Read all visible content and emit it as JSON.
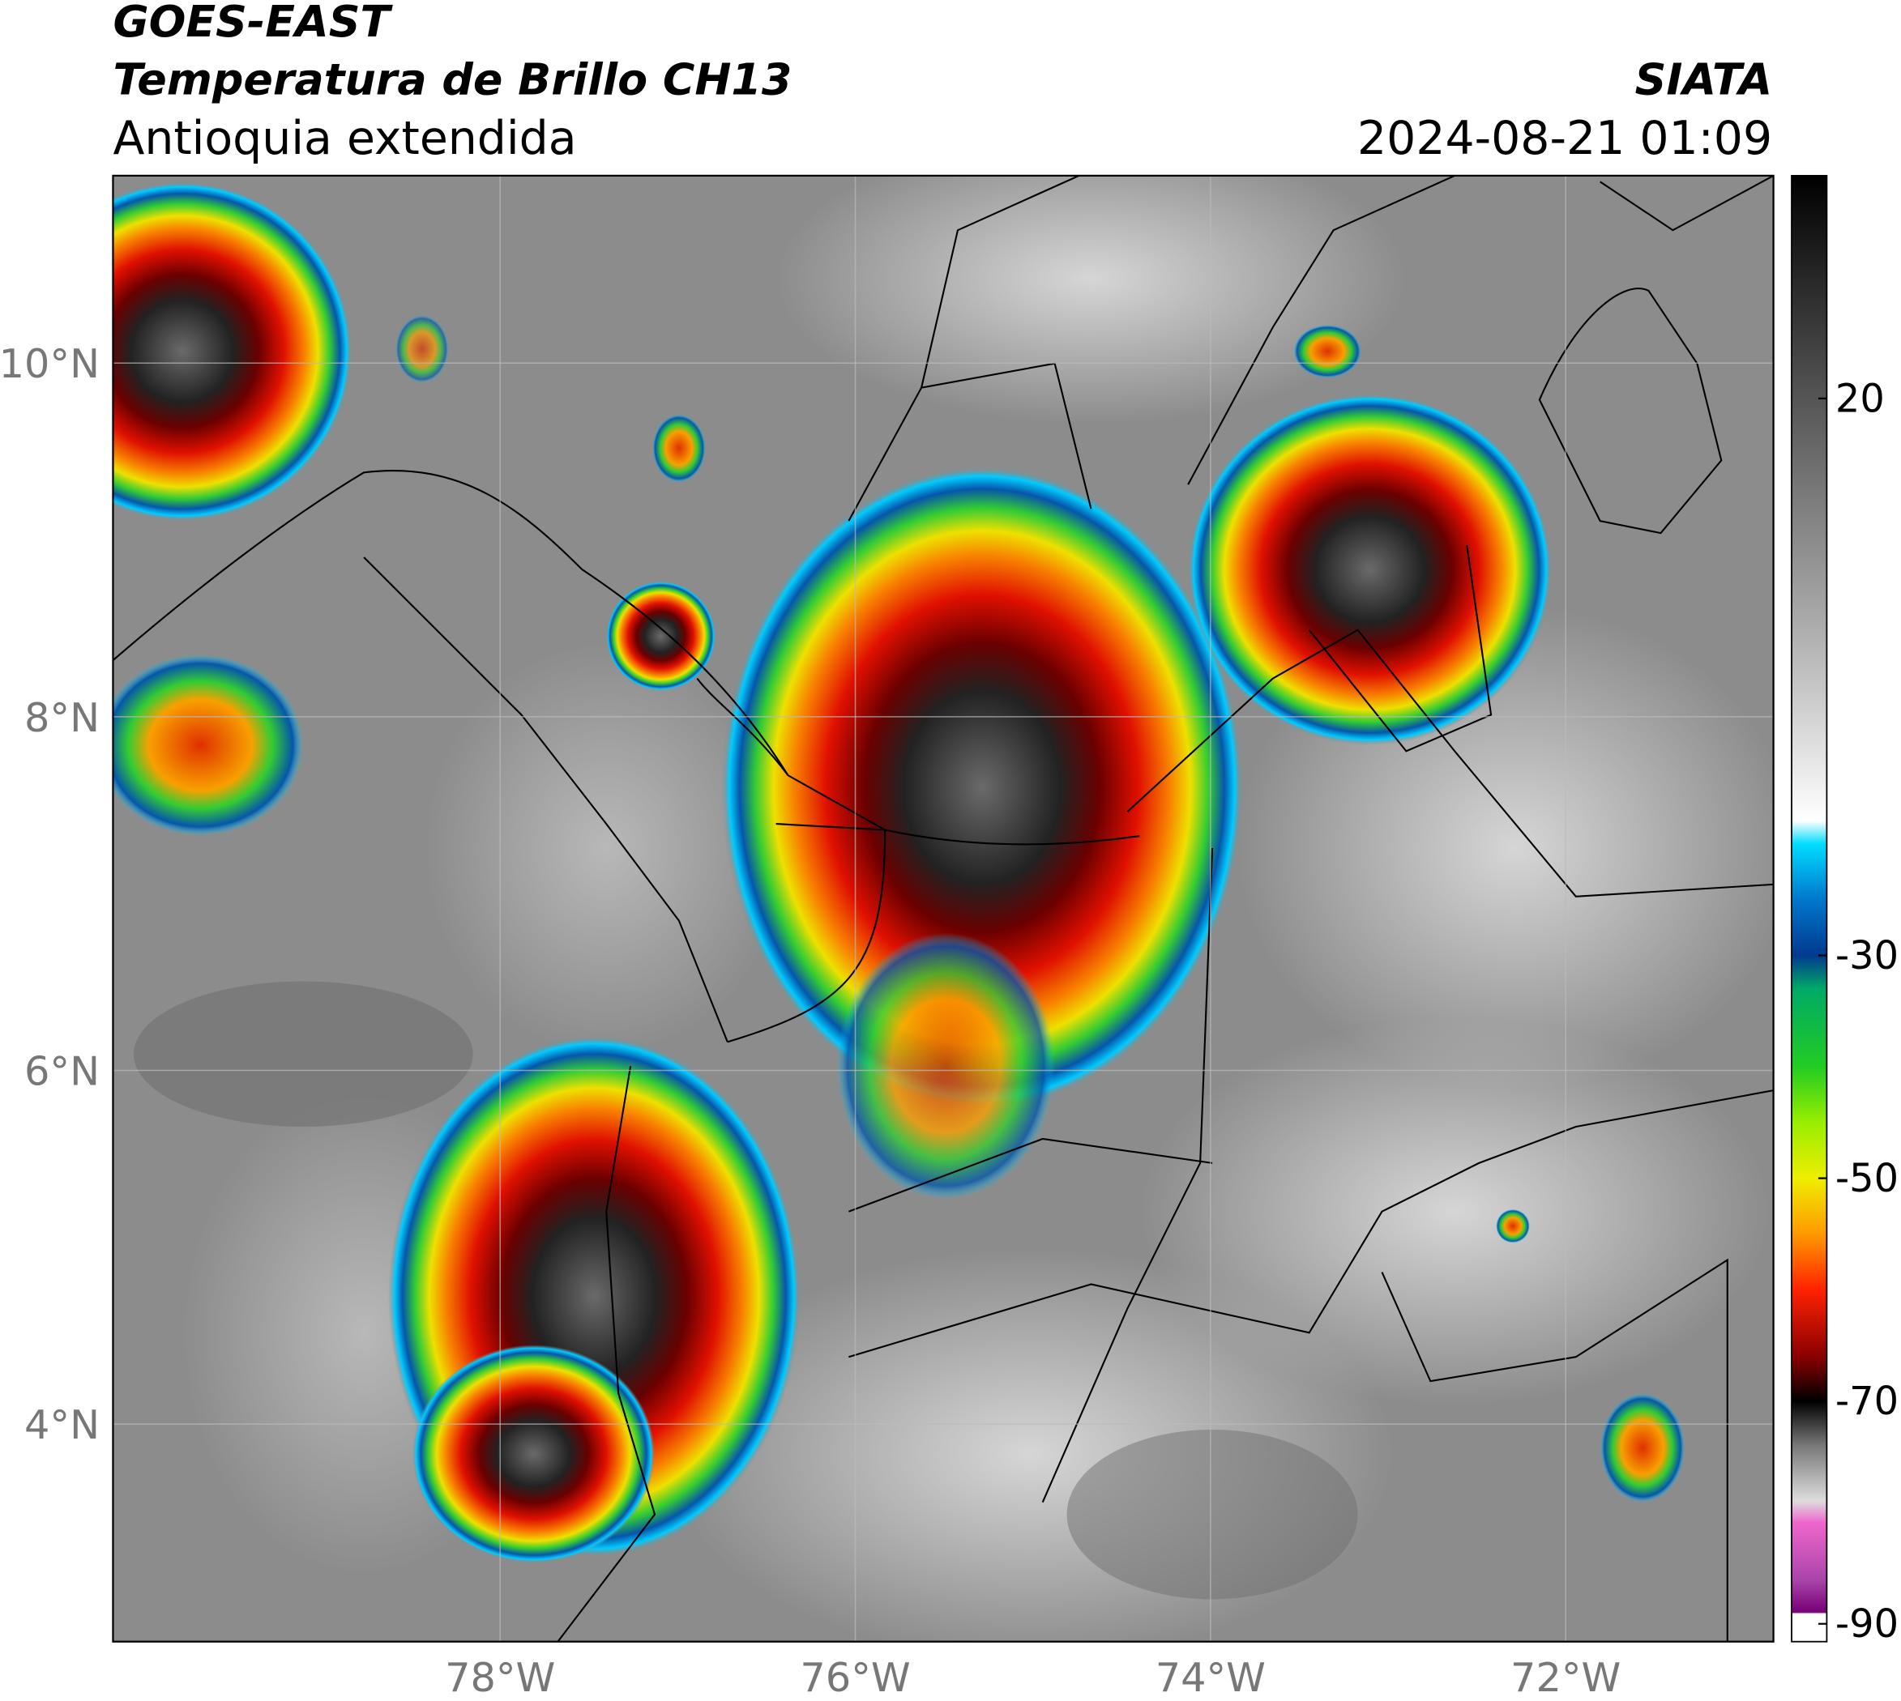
{
  "header": {
    "title": "GOES-EAST",
    "subtitle": "Temperatura de Brillo CH13",
    "region": "Antioquia extendida",
    "source": "SIATA",
    "datetime": "2024-08-21 01:09"
  },
  "map": {
    "xlim": [
      -80.18,
      -70.83
    ],
    "ylim": [
      2.77,
      11.06
    ],
    "xticks": [
      {
        "value": -78,
        "label": "78°W"
      },
      {
        "value": -76,
        "label": "76°W"
      },
      {
        "value": -74,
        "label": "74°W"
      },
      {
        "value": -72,
        "label": "72°W"
      }
    ],
    "yticks": [
      {
        "value": 4,
        "label": "4°N"
      },
      {
        "value": 6,
        "label": "6°N"
      },
      {
        "value": 8,
        "label": "8°N"
      },
      {
        "value": 10,
        "label": "10°N"
      }
    ],
    "grid": true
  },
  "colorbar": {
    "lim": [
      -91.6,
      40
    ],
    "ticks": [
      20,
      -30,
      -50,
      -70,
      -90
    ]
  }
}
